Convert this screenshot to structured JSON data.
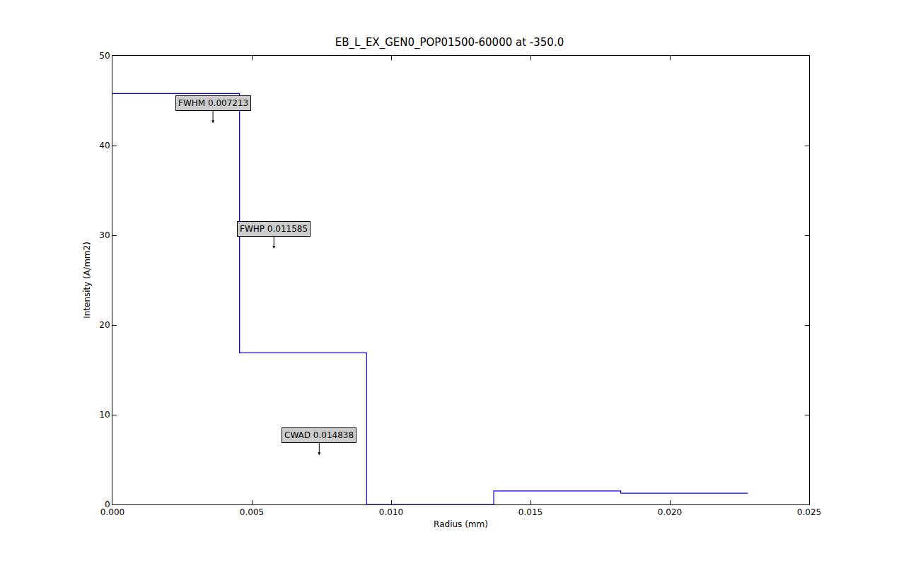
{
  "chart_data": {
    "type": "line",
    "line_style": "step",
    "title": "EB_L_EX_GEN0_POP01500-60000 at -350.0",
    "x_label": "Radius (mm)",
    "y_label": "Intensity (A/mm2)",
    "x": [
      0,
      0.00456,
      0.00912,
      0.01368,
      0.01824,
      0.0228
    ],
    "values": [
      45.8,
      16.9,
      0,
      1.5,
      1.25,
      1.25
    ],
    "color": "#0000ff",
    "xlim": [
      0,
      0.025
    ],
    "xticks": [
      {
        "value": 0,
        "label": "0.000"
      },
      {
        "value": 0.005,
        "label": "0.005"
      },
      {
        "value": 0.01,
        "label": "0.010"
      },
      {
        "value": 0.015,
        "label": "0.015"
      },
      {
        "value": 0.02,
        "label": "0.020"
      },
      {
        "value": 0.025,
        "label": "0.025"
      }
    ],
    "ylim": [
      0,
      50
    ],
    "yticks": [
      0,
      10,
      20,
      30,
      40,
      50
    ],
    "grid": false,
    "annotations": [
      {
        "text": "FWHM 0.007213",
        "x": 0.0036065,
        "y": 42.5
      },
      {
        "text": "FWHP 0.011585",
        "x": 0.0057925,
        "y": 28.5
      },
      {
        "text": "CWAD 0.014838",
        "x": 0.007419,
        "y": 5.5
      }
    ]
  }
}
